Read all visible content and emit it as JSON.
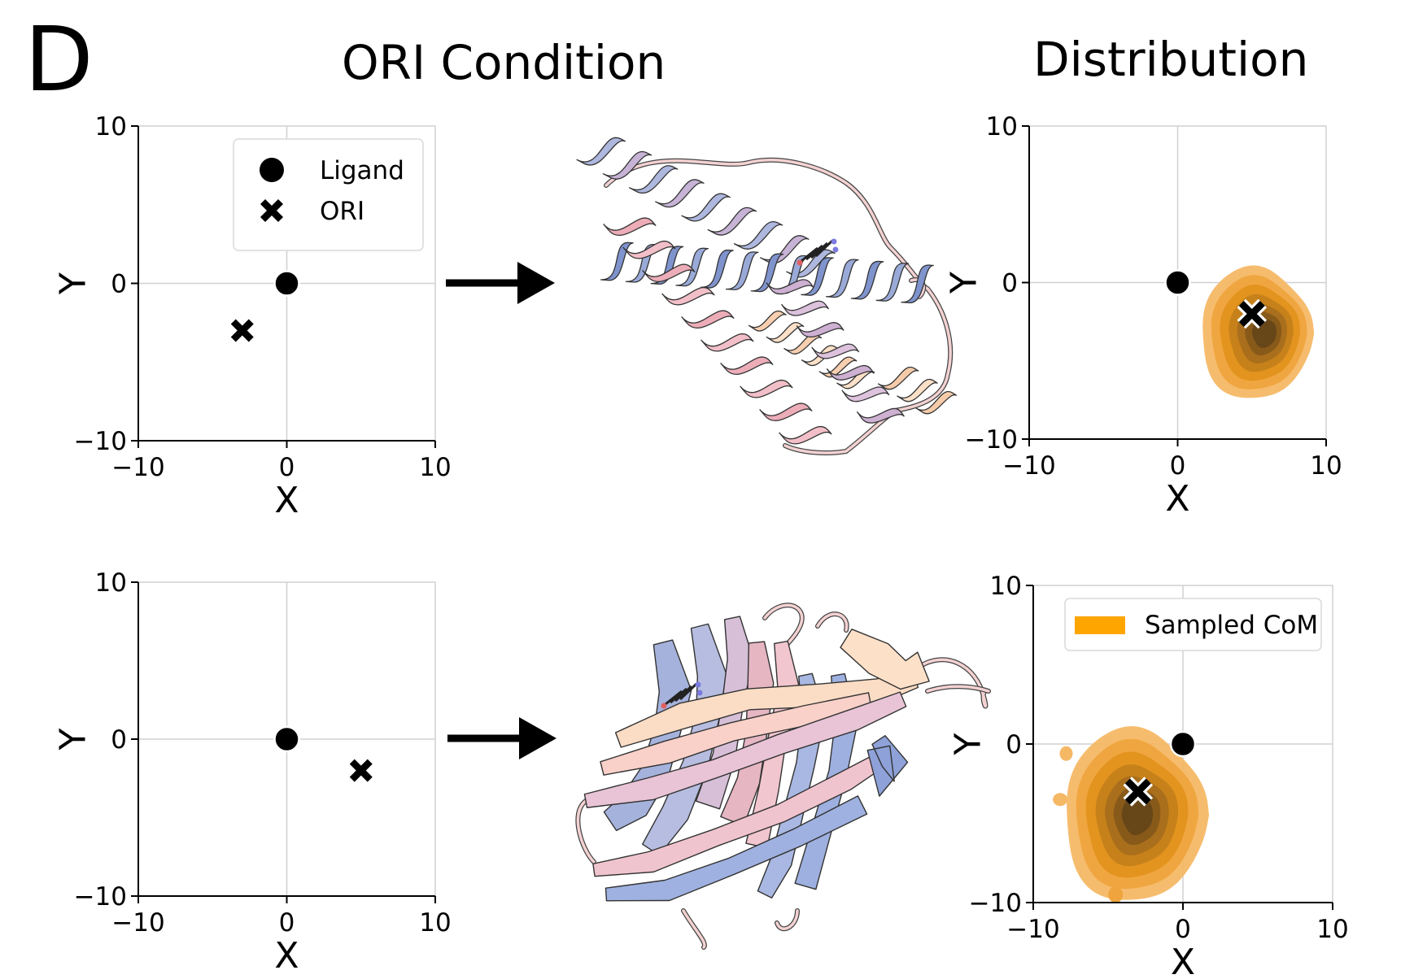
{
  "figure": {
    "panel_letter": "D",
    "column_titles": {
      "left": "ORI Condition",
      "right": "Distribution"
    }
  },
  "colors": {
    "marker": "#000000",
    "grid": "#d0d0d0",
    "density": "#f5a020",
    "density_dark": "#5e4418",
    "legend_patch": "#ffa500",
    "helix_pink": "#f2bfc9",
    "helix_blue": "#9aaad8",
    "helix_lavender": "#c7b3d6",
    "helix_peach": "#fde0c8",
    "arrow": "#000000"
  },
  "icons": {
    "arrow": "right-arrow-icon",
    "protein_top": "alpha-helix-protein-icon",
    "protein_bottom": "beta-sheet-protein-icon"
  },
  "chart_data": [
    {
      "id": "cond-top",
      "type": "scatter",
      "xlabel": "X",
      "ylabel": "Y",
      "xlim": [
        -10,
        10
      ],
      "ylim": [
        -10,
        10
      ],
      "xticks": [
        -10,
        0,
        10
      ],
      "yticks": [
        -10,
        0,
        10
      ],
      "grid": "origin-lines",
      "legend": {
        "position": "top-right",
        "entries": [
          {
            "marker": "circle",
            "label": "Ligand"
          },
          {
            "marker": "x",
            "label": "ORI"
          }
        ]
      },
      "points": [
        {
          "marker": "circle",
          "x": 0,
          "y": 0
        },
        {
          "marker": "x",
          "x": -3,
          "y": -3
        }
      ]
    },
    {
      "id": "dist-top",
      "type": "scatter",
      "xlabel": "X",
      "ylabel": "Y",
      "xlim": [
        -10,
        10
      ],
      "ylim": [
        -10,
        10
      ],
      "xticks": [
        -10,
        0,
        10
      ],
      "yticks": [
        -10,
        0,
        10
      ],
      "grid": "origin-lines",
      "points": [
        {
          "marker": "circle",
          "x": 0,
          "y": 0
        },
        {
          "marker": "x",
          "x": 5,
          "y": -2
        }
      ],
      "density": {
        "center": [
          6,
          -3.2
        ],
        "extent_x": [
          1.5,
          9
        ],
        "extent_y": [
          -7.5,
          1
        ]
      }
    },
    {
      "id": "cond-bottom",
      "type": "scatter",
      "xlabel": "X",
      "ylabel": "Y",
      "xlim": [
        -10,
        10
      ],
      "ylim": [
        -10,
        10
      ],
      "xticks": [
        -10,
        0,
        10
      ],
      "yticks": [
        -10,
        0,
        10
      ],
      "grid": "origin-lines",
      "points": [
        {
          "marker": "circle",
          "x": 0,
          "y": 0
        },
        {
          "marker": "x",
          "x": 5,
          "y": -2
        }
      ]
    },
    {
      "id": "dist-bottom",
      "type": "scatter",
      "xlabel": "X",
      "ylabel": "Y",
      "xlim": [
        -10,
        10
      ],
      "ylim": [
        -10,
        10
      ],
      "xticks": [
        -10,
        0,
        10
      ],
      "yticks": [
        -10,
        0,
        10
      ],
      "grid": "origin-lines",
      "legend": {
        "position": "top-right",
        "entries": [
          {
            "marker": "patch",
            "label": "Sampled CoM"
          }
        ]
      },
      "points": [
        {
          "marker": "circle",
          "x": 0,
          "y": 0
        },
        {
          "marker": "x",
          "x": -3,
          "y": -3
        }
      ],
      "density": {
        "center": [
          -3,
          -4.5
        ],
        "extent_x": [
          -8,
          1.5
        ],
        "extent_y": [
          -10,
          1
        ]
      }
    }
  ]
}
